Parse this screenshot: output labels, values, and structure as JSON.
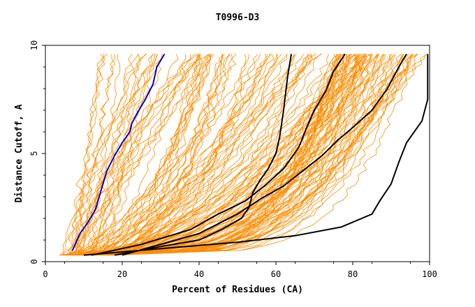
{
  "chart_data": {
    "type": "line",
    "title": "T0996-D3",
    "xlabel": "Percent of Residues (CA)",
    "ylabel": "Distance Cutoff, A",
    "xlim": [
      0,
      100
    ],
    "ylim": [
      0,
      10
    ],
    "xticks": [
      "0",
      "20",
      "40",
      "60",
      "80",
      "100"
    ],
    "yticks": [
      "0",
      "5",
      "10"
    ],
    "grid": false,
    "legend": "none",
    "colors": {
      "background_curves": "#ff8c00",
      "highlight": "#000000",
      "reference": "#0000cc"
    },
    "highlighted_series": [
      {
        "color": "#0000cc",
        "points": [
          [
            7,
            0.5
          ],
          [
            8,
            0.9
          ],
          [
            9,
            1.3
          ],
          [
            11,
            1.8
          ],
          [
            13,
            2.4
          ],
          [
            14,
            3.0
          ],
          [
            15,
            3.6
          ],
          [
            16,
            4.2
          ],
          [
            18,
            4.9
          ],
          [
            20,
            5.5
          ],
          [
            22,
            6.0
          ],
          [
            22.5,
            6.4
          ],
          [
            24,
            6.9
          ],
          [
            26,
            7.5
          ],
          [
            28,
            8.2
          ],
          [
            29,
            9.0
          ],
          [
            31,
            9.6
          ]
        ]
      },
      {
        "color": "#000000",
        "points": [
          [
            18,
            0.3
          ],
          [
            30,
            0.7
          ],
          [
            40,
            1.0
          ],
          [
            46,
            1.5
          ],
          [
            51,
            2.0
          ],
          [
            53,
            2.5
          ],
          [
            54,
            3.2
          ],
          [
            56,
            3.8
          ],
          [
            58,
            4.3
          ],
          [
            60,
            5.0
          ],
          [
            61,
            5.8
          ],
          [
            62,
            7.0
          ],
          [
            63,
            8.5
          ],
          [
            64,
            9.6
          ]
        ]
      },
      {
        "color": "#000000",
        "points": [
          [
            20,
            0.3
          ],
          [
            30,
            0.8
          ],
          [
            40,
            1.3
          ],
          [
            50,
            2.2
          ],
          [
            56,
            2.9
          ],
          [
            62,
            3.5
          ],
          [
            67,
            4.2
          ],
          [
            72,
            4.9
          ],
          [
            76,
            5.6
          ],
          [
            80,
            6.2
          ],
          [
            85,
            7.0
          ],
          [
            89,
            8.0
          ],
          [
            92,
            9.0
          ],
          [
            94,
            9.6
          ]
        ]
      },
      {
        "color": "#000000",
        "points": [
          [
            12,
            0.3
          ],
          [
            25,
            0.8
          ],
          [
            38,
            1.5
          ],
          [
            45,
            2.2
          ],
          [
            52,
            2.8
          ],
          [
            57,
            3.5
          ],
          [
            62,
            4.3
          ],
          [
            66,
            5.3
          ],
          [
            68,
            6.2
          ],
          [
            70,
            7.0
          ],
          [
            73,
            7.9
          ],
          [
            75,
            8.8
          ],
          [
            78,
            9.6
          ]
        ]
      },
      {
        "color": "#000000",
        "points": [
          [
            10,
            0.3
          ],
          [
            30,
            0.6
          ],
          [
            50,
            0.9
          ],
          [
            65,
            1.2
          ],
          [
            77,
            1.6
          ],
          [
            85,
            2.2
          ],
          [
            87,
            2.8
          ],
          [
            90,
            3.6
          ],
          [
            92,
            4.6
          ],
          [
            94,
            5.5
          ],
          [
            98,
            6.5
          ],
          [
            99.5,
            7.5
          ],
          [
            99.5,
            9.6
          ]
        ]
      }
    ],
    "background_series_count": 150
  }
}
